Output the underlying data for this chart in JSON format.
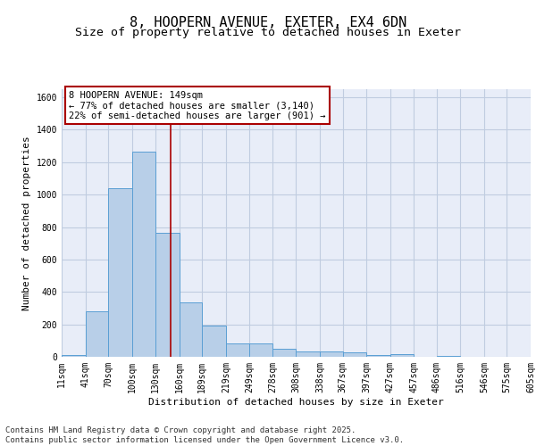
{
  "title": "8, HOOPERN AVENUE, EXETER, EX4 6DN",
  "subtitle": "Size of property relative to detached houses in Exeter",
  "xlabel": "Distribution of detached houses by size in Exeter",
  "ylabel": "Number of detached properties",
  "bins": [
    11,
    41,
    70,
    100,
    130,
    160,
    189,
    219,
    249,
    278,
    308,
    338,
    367,
    397,
    427,
    457,
    486,
    516,
    546,
    575,
    605
  ],
  "bar_heights": [
    10,
    280,
    1040,
    1265,
    765,
    335,
    190,
    80,
    80,
    50,
    35,
    35,
    25,
    10,
    15,
    0,
    5,
    0,
    0,
    0
  ],
  "bar_color": "#b8cfe8",
  "bar_edgecolor": "#5a9fd4",
  "bar_linewidth": 0.7,
  "vline_x": 149,
  "vline_color": "#aa0000",
  "vline_linewidth": 1.2,
  "ylim": [
    0,
    1650
  ],
  "yticks": [
    0,
    200,
    400,
    600,
    800,
    1000,
    1200,
    1400,
    1600
  ],
  "annotation_text": "8 HOOPERN AVENUE: 149sqm\n← 77% of detached houses are smaller (3,140)\n22% of semi-detached houses are larger (901) →",
  "annotation_box_edgecolor": "#aa0000",
  "grid_color": "#c0cce0",
  "bg_color": "#e8edf8",
  "footer_text": "Contains HM Land Registry data © Crown copyright and database right 2025.\nContains public sector information licensed under the Open Government Licence v3.0.",
  "title_fontsize": 11,
  "subtitle_fontsize": 9.5,
  "tick_label_fontsize": 7,
  "axis_label_fontsize": 8,
  "annotation_fontsize": 7.5,
  "footer_fontsize": 6.5
}
